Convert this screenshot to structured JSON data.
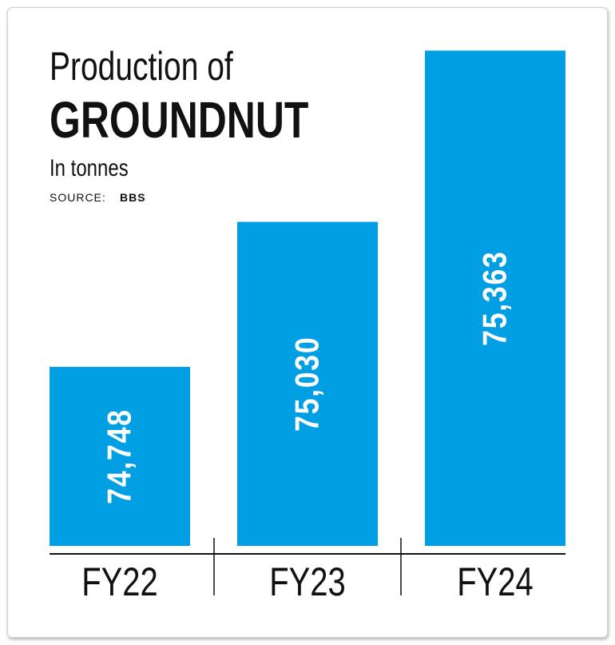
{
  "chart_data": {
    "type": "bar",
    "title_lines": [
      "Production of",
      "GROUNDNUT"
    ],
    "subtitle": "In tonnes",
    "source_label": "SOURCE:",
    "source": "BBS",
    "categories": [
      "FY22",
      "FY23",
      "FY24"
    ],
    "values": [
      74748,
      75030,
      75363
    ],
    "value_labels": [
      "74,748",
      "75,030",
      "75,363"
    ],
    "color": "#009ee2",
    "ylim": [
      74400,
      75365
    ]
  }
}
